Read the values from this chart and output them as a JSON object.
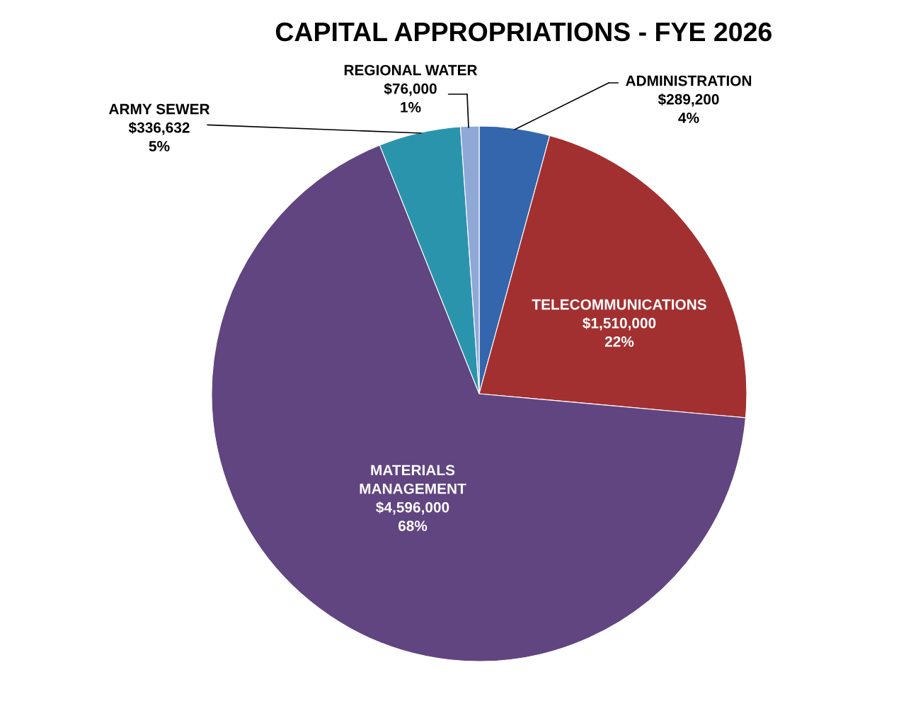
{
  "chart_data": {
    "type": "pie",
    "title": "CAPITAL APPROPRIATIONS - FYE 2026",
    "categories": [
      "ADMINISTRATION",
      "TELECOMMUNICATIONS",
      "MATERIALS\nMANAGEMENT",
      "ARMY SEWER",
      "REGIONAL WATER"
    ],
    "values": [
      289200,
      1510000,
      4596000,
      336632,
      76000
    ],
    "value_labels": [
      "$289,200\n4%",
      "$1,510,000\n22%",
      "$4,596,000\n68%",
      "$336,632\n5%",
      "$76,000\n1%"
    ],
    "colors": [
      "#3366ac",
      "#a33030",
      "#614580",
      "#2b94ad",
      "#8fa8d6"
    ]
  }
}
